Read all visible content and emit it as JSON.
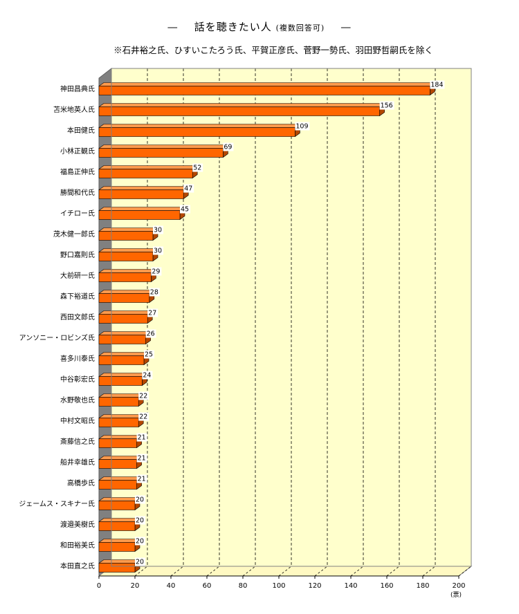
{
  "title": {
    "dash_left": "—",
    "main": "話を聴きたい人",
    "note": "(複数回答可)",
    "dash_right": "—"
  },
  "subtitle": "※石井裕之氏、ひすいこたろう氏、平賀正彦氏、菅野一勢氏、羽田野哲嗣氏を除く",
  "colors": {
    "bar_front": "#ff6600",
    "bar_top": "#ff9a4d",
    "bar_side": "#b34700",
    "plot_back": "#ffffcc",
    "plot_floor": "#fff9c2",
    "left_wall": "#808080",
    "frame": "#808080",
    "label_bg": "#ffffff"
  },
  "chart_data": {
    "type": "bar",
    "orientation": "horizontal",
    "three_d": true,
    "categories": [
      "神田昌典氏",
      "苫米地英人氏",
      "本田健氏",
      "小林正観氏",
      "福島正伸氏",
      "勝間和代氏",
      "イチロー氏",
      "茂木健一郎氏",
      "野口嘉則氏",
      "大前研一氏",
      "森下裕道氏",
      "西田文郎氏",
      "アンソニー・ロビンズ氏",
      "喜多川泰氏",
      "中谷彰宏氏",
      "水野敬也氏",
      "中村文昭氏",
      "斎藤信之氏",
      "船井幸雄氏",
      "高橋歩氏",
      "ジェームス・スキナー氏",
      "渡邉美樹氏",
      "和田裕美氏",
      "本田直之氏"
    ],
    "values": [
      184,
      156,
      109,
      69,
      52,
      47,
      45,
      30,
      30,
      29,
      28,
      27,
      26,
      25,
      24,
      22,
      22,
      21,
      21,
      21,
      20,
      20,
      20,
      20
    ],
    "x_ticks": [
      "0",
      "20",
      "40",
      "60",
      "80",
      "100",
      "120",
      "140",
      "160",
      "180",
      "200"
    ],
    "xlim": [
      0,
      200
    ],
    "x_unit": "(票)",
    "grid": "vertical dashed",
    "data_labels": true
  }
}
